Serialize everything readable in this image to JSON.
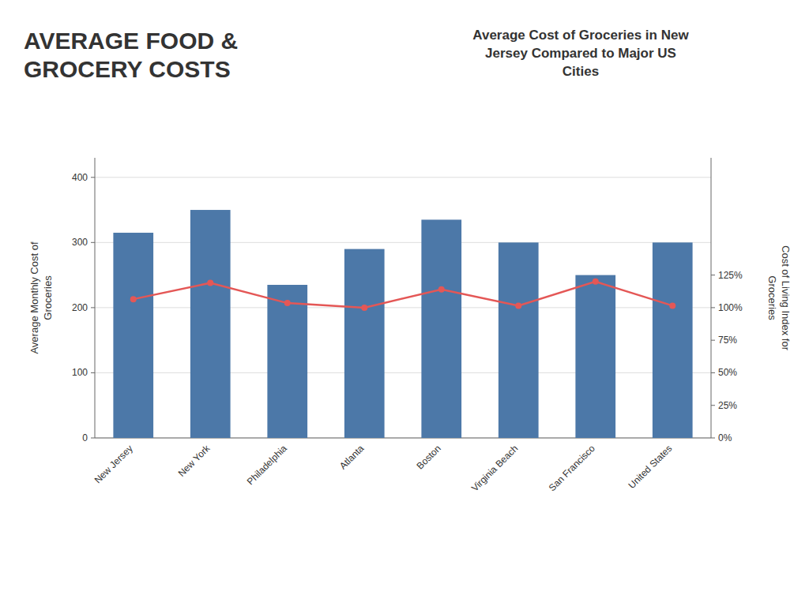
{
  "chart_data": {
    "type": "bar",
    "title": "Average Cost of Groceries in New\nJersey Compared to Major US\nCities",
    "annotations": [
      {
        "text": "AVERAGE FOOD &\nGROCERY COSTS"
      }
    ],
    "ylabel": "Average Monthly Cost of\nGroceries",
    "y2label": "Cost of Living Index for\nGroceries",
    "categories": [
      "New Jersey",
      "New York",
      "Philadelphia",
      "Atlanta",
      "Boston",
      "Virginia Beach",
      "San Francisco",
      "United States"
    ],
    "series": [
      {
        "type": "bar",
        "values": [
          315,
          350,
          235,
          290,
          335,
          300,
          250,
          300
        ]
      },
      {
        "type": "line",
        "marker": "circle",
        "values": [
          213,
          238,
          207,
          200,
          228,
          203,
          240,
          203
        ]
      }
    ],
    "ylim": [
      0,
      430
    ],
    "yticks": [
      0,
      100,
      200,
      300,
      400
    ],
    "y2lim": [
      0,
      2.15
    ],
    "y2ticks": [
      {
        "value": 0.0,
        "label": "0%"
      },
      {
        "value": 0.25,
        "label": "25%"
      },
      {
        "value": 0.5,
        "label": "50%"
      },
      {
        "value": 0.75,
        "label": "75%"
      },
      {
        "value": 1.0,
        "label": "100%"
      },
      {
        "value": 1.25,
        "label": "125%"
      }
    ],
    "grid": true
  }
}
